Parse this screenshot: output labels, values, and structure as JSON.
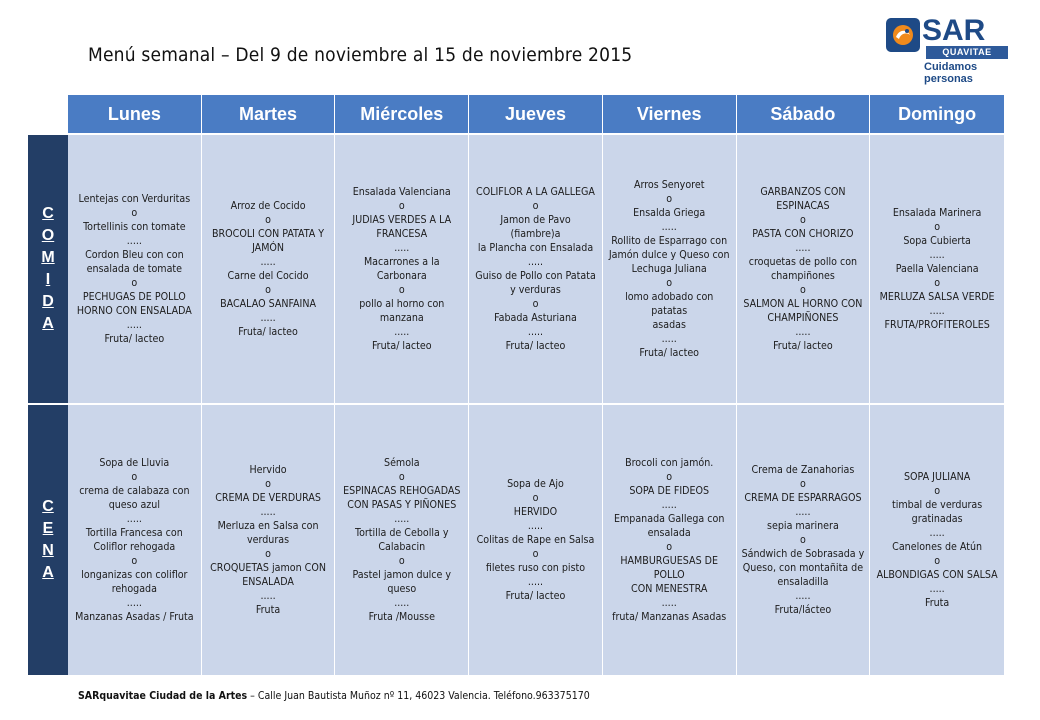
{
  "page": {
    "title": "Menú semanal – Del 9 de noviembre al 15 de noviembre 2015"
  },
  "logo": {
    "name": "SAR",
    "sub": "QUAVITAE",
    "tagline": "Cuidamos personas",
    "color_primary": "#1e4a86",
    "color_accent": "#f08a1c"
  },
  "days": [
    "Lunes",
    "Martes",
    "Miércoles",
    "Jueves",
    "Viernes",
    "Sábado",
    "Domingo"
  ],
  "meals": [
    {
      "label": "COMIDA",
      "letters": [
        "C",
        "O",
        "M",
        "I",
        "D",
        "A"
      ],
      "days": [
        [
          "Lentejas con Verduritas",
          "o",
          "Tortellinis con tomate",
          ".....",
          "Cordon Bleu con con",
          "ensalada de tomate",
          "o",
          "PECHUGAS DE POLLO",
          "HORNO CON ENSALADA",
          ".....",
          "Fruta/ lacteo"
        ],
        [
          "Arroz de Cocido",
          "o",
          "BROCOLI CON PATATA Y",
          "JAMÓN",
          ".....",
          "Carne del Cocido",
          "o",
          "BACALAO SANFAINA",
          ".....",
          "Fruta/ lacteo"
        ],
        [
          "Ensalada Valenciana",
          "o",
          "JUDIAS VERDES A LA",
          "FRANCESA",
          ".....",
          "Macarrones  a la",
          "Carbonara",
          "o",
          "pollo al horno con",
          "manzana",
          ".....",
          "Fruta/ lacteo"
        ],
        [
          "COLIFLOR A LA GALLEGA",
          "o",
          "Jamon de Pavo (fiambre)a",
          "la Plancha con Ensalada",
          ".....",
          "Guiso de Pollo con  Patata",
          "y verduras",
          "o",
          "Fabada Asturiana",
          ".....",
          "Fruta/ lacteo"
        ],
        [
          "Arros Senyoret",
          "o",
          "Ensalda Griega",
          ".....",
          "Rollito de Esparrago con",
          "Jamón dulce y Queso con",
          "Lechuga Juliana",
          "o",
          "lomo adobado con patatas",
          "asadas",
          ".....",
          "Fruta/ lacteo"
        ],
        [
          "GARBANZOS CON",
          "ESPINACAS",
          "o",
          "PASTA CON CHORIZO",
          ".....",
          "croquetas de pollo con",
          "champiñones",
          "o",
          "SALMON AL HORNO CON",
          "CHAMPIÑONES",
          ".....",
          "Fruta/ lacteo"
        ],
        [
          "Ensalada Marinera",
          "o",
          "Sopa Cubierta",
          ".....",
          "Paella Valenciana",
          "o",
          "MERLUZA SALSA VERDE",
          ".....",
          "FRUTA/PROFITEROLES"
        ]
      ]
    },
    {
      "label": "CENA",
      "letters": [
        "C",
        "E",
        "N",
        "A"
      ],
      "days": [
        [
          "Sopa de Lluvia",
          "o",
          "crema de calabaza con",
          "queso azul",
          ".....",
          "Tortilla Francesa  con",
          "Coliflor rehogada",
          "o",
          "longanizas  con coliflor",
          "rehogada",
          ".....",
          "Manzanas Asadas / Fruta"
        ],
        [
          "Hervido",
          "o",
          "CREMA DE VERDURAS",
          ".....",
          "Merluza en Salsa  con",
          "verduras",
          "o",
          "CROQUETAS jamon CON",
          "ENSALADA",
          ".....",
          "Fruta"
        ],
        [
          "Sémola",
          "o",
          "ESPINACAS REHOGADAS",
          "CON PASAS Y PIÑONES",
          ".....",
          "Tortilla  de Cebolla y",
          "Calabacin",
          "o",
          "Pastel jamon dulce y",
          "queso",
          ".....",
          "Fruta /Mousse"
        ],
        [
          "Sopa de Ajo",
          "o",
          "HERVIDO",
          ".....",
          "Colitas de Rape en Salsa",
          "o",
          "filetes ruso con pisto",
          ".....",
          "Fruta/ lacteo"
        ],
        [
          "Brocoli con jamón.",
          "o",
          "SOPA DE FIDEOS",
          ".....",
          "Empanada Gallega con",
          "ensalada",
          "o",
          "HAMBURGUESAS DE POLLO",
          "CON MENESTRA",
          ".....",
          "fruta/ Manzanas Asadas"
        ],
        [
          "Crema de Zanahorias",
          "o",
          "CREMA DE ESPARRAGOS",
          ".....",
          "sepia marinera",
          "o",
          "Sándwich de  Sobrasada y",
          "Queso, con montañita de",
          "ensaladilla",
          ".....",
          "Fruta/lácteo"
        ],
        [
          "SOPA JULIANA",
          "o",
          "timbal de verduras",
          "gratinadas",
          ".....",
          "Canelones de Atún",
          "o",
          "ALBONDIGAS CON SALSA",
          ".....",
          "Fruta"
        ]
      ]
    }
  ],
  "footer": {
    "name": "SARquavitae  Ciudad  de la Artes",
    "address": " – Calle Juan Bautista Muñoz nº 11,  46023 Valencia. Teléfono.963375170"
  },
  "colors": {
    "header_bg": "#4a7cc4",
    "side_bg": "#233e66",
    "cell_bg": "#cbd6ea"
  }
}
